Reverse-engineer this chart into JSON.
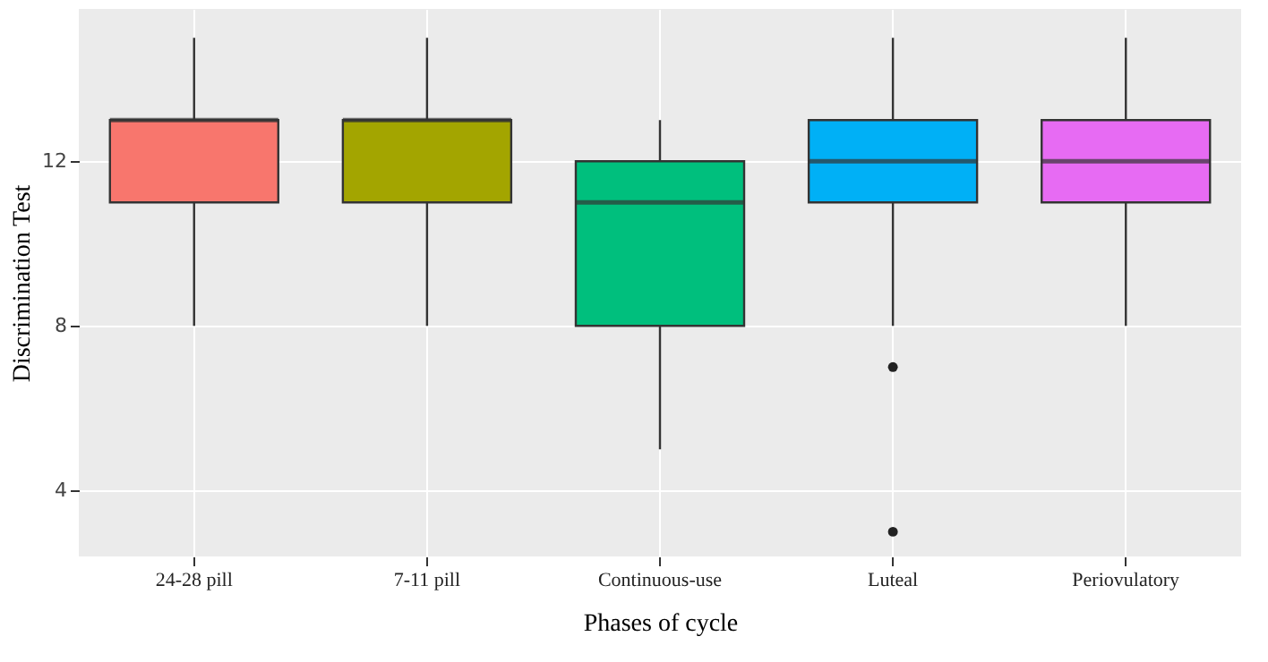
{
  "chart_data": {
    "type": "box",
    "xlabel": "Phases of cycle",
    "ylabel": "Discrimination Test",
    "categories": [
      "24-28 pill",
      "7-11 pill",
      "Continuous-use",
      "Luteal",
      "Periovulatory"
    ],
    "colors": [
      "#f8766d",
      "#a3a500",
      "#00bf7d",
      "#00b0f6",
      "#e76bf3"
    ],
    "boxes": [
      {
        "low": 8,
        "q1": 11,
        "median": 13,
        "q3": 13,
        "high": 15
      },
      {
        "low": 8,
        "q1": 11,
        "median": 13,
        "q3": 13,
        "high": 15
      },
      {
        "low": 5,
        "q1": 8,
        "median": 11,
        "q3": 12,
        "high": 13
      },
      {
        "low": 8,
        "q1": 11,
        "median": 12,
        "q3": 13,
        "high": 15,
        "outliers": [
          7,
          3
        ]
      },
      {
        "low": 8,
        "q1": 11,
        "median": 12,
        "q3": 13,
        "high": 15
      }
    ],
    "ylim": [
      2.4,
      15.7
    ],
    "yticks": [
      4,
      8,
      12
    ],
    "grid": true,
    "legend": false
  }
}
